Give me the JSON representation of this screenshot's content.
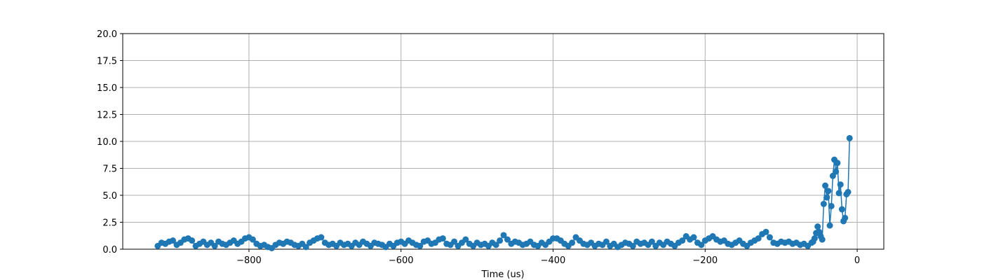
{
  "chart_data": {
    "type": "line",
    "xlabel": "Time (us)",
    "grid": true,
    "marker": "o",
    "xlim": [
      -966,
      35
    ],
    "ylim": [
      0,
      20
    ],
    "xticks": [
      {
        "value": -800,
        "label": "−800"
      },
      {
        "value": -600,
        "label": "−600"
      },
      {
        "value": -400,
        "label": "−400"
      },
      {
        "value": -200,
        "label": "−200"
      },
      0
    ],
    "yticks": [
      {
        "value": 0,
        "label": "0.0"
      },
      {
        "value": 2.5,
        "label": "2.5"
      },
      {
        "value": 5,
        "label": "5.0"
      },
      {
        "value": 7.5,
        "label": "7.5"
      },
      {
        "value": 10,
        "label": "10.0"
      },
      {
        "value": 12.5,
        "label": "12.5"
      },
      {
        "value": 15,
        "label": "15.0"
      },
      {
        "value": 17.5,
        "label": "17.5"
      },
      {
        "value": 20,
        "label": "20.0"
      }
    ],
    "x": [
      -920,
      -915,
      -910,
      -905,
      -900,
      -895,
      -890,
      -885,
      -880,
      -875,
      -870,
      -865,
      -860,
      -855,
      -850,
      -845,
      -840,
      -835,
      -830,
      -825,
      -820,
      -815,
      -810,
      -805,
      -800,
      -795,
      -790,
      -785,
      -780,
      -775,
      -770,
      -765,
      -760,
      -755,
      -750,
      -745,
      -740,
      -735,
      -730,
      -725,
      -720,
      -715,
      -710,
      -705,
      -700,
      -695,
      -690,
      -685,
      -680,
      -675,
      -670,
      -665,
      -660,
      -655,
      -650,
      -645,
      -640,
      -635,
      -630,
      -625,
      -620,
      -615,
      -610,
      -605,
      -600,
      -595,
      -590,
      -585,
      -580,
      -575,
      -570,
      -565,
      -560,
      -555,
      -550,
      -545,
      -540,
      -535,
      -530,
      -525,
      -520,
      -515,
      -510,
      -505,
      -500,
      -495,
      -490,
      -485,
      -480,
      -475,
      -470,
      -465,
      -460,
      -455,
      -450,
      -445,
      -440,
      -435,
      -430,
      -425,
      -420,
      -415,
      -410,
      -405,
      -400,
      -395,
      -390,
      -385,
      -380,
      -375,
      -370,
      -365,
      -360,
      -355,
      -350,
      -345,
      -340,
      -335,
      -330,
      -325,
      -320,
      -315,
      -310,
      -305,
      -300,
      -295,
      -290,
      -285,
      -280,
      -275,
      -270,
      -265,
      -260,
      -255,
      -250,
      -245,
      -240,
      -235,
      -230,
      -225,
      -220,
      -215,
      -210,
      -205,
      -200,
      -195,
      -190,
      -185,
      -180,
      -175,
      -170,
      -165,
      -160,
      -155,
      -150,
      -145,
      -140,
      -135,
      -130,
      -125,
      -120,
      -115,
      -110,
      -105,
      -100,
      -95,
      -90,
      -85,
      -80,
      -75,
      -70,
      -65,
      -60,
      -58,
      -56,
      -54,
      -52,
      -50,
      -48,
      -46,
      -44,
      -42,
      -40,
      -38,
      -36,
      -34,
      -32,
      -30,
      -28,
      -26,
      -24,
      -22,
      -20,
      -18,
      -16,
      -14,
      -12,
      -10
    ],
    "series": [
      {
        "color": "#1f77b4",
        "values": [
          0.3,
          0.6,
          0.5,
          0.7,
          0.8,
          0.4,
          0.6,
          0.9,
          1.0,
          0.8,
          0.3,
          0.5,
          0.7,
          0.4,
          0.6,
          0.3,
          0.7,
          0.5,
          0.4,
          0.6,
          0.8,
          0.5,
          0.7,
          1.0,
          1.1,
          0.9,
          0.5,
          0.3,
          0.4,
          0.2,
          0.1,
          0.4,
          0.6,
          0.5,
          0.7,
          0.6,
          0.4,
          0.3,
          0.5,
          0.2,
          0.6,
          0.8,
          1.0,
          1.1,
          0.6,
          0.4,
          0.5,
          0.3,
          0.6,
          0.4,
          0.5,
          0.3,
          0.6,
          0.4,
          0.7,
          0.5,
          0.3,
          0.6,
          0.5,
          0.4,
          0.2,
          0.5,
          0.3,
          0.6,
          0.7,
          0.5,
          0.8,
          0.6,
          0.4,
          0.3,
          0.7,
          0.8,
          0.5,
          0.6,
          0.9,
          1.0,
          0.5,
          0.4,
          0.7,
          0.3,
          0.6,
          0.9,
          0.5,
          0.3,
          0.6,
          0.4,
          0.5,
          0.3,
          0.6,
          0.4,
          0.8,
          1.3,
          0.9,
          0.5,
          0.7,
          0.6,
          0.4,
          0.5,
          0.7,
          0.4,
          0.3,
          0.6,
          0.4,
          0.7,
          1.0,
          1.0,
          0.8,
          0.5,
          0.3,
          0.6,
          1.1,
          0.8,
          0.5,
          0.4,
          0.6,
          0.3,
          0.5,
          0.4,
          0.7,
          0.3,
          0.5,
          0.2,
          0.4,
          0.6,
          0.5,
          0.3,
          0.7,
          0.5,
          0.6,
          0.4,
          0.7,
          0.3,
          0.6,
          0.4,
          0.7,
          0.5,
          0.3,
          0.6,
          0.8,
          1.2,
          0.9,
          1.1,
          0.6,
          0.4,
          0.8,
          1.0,
          1.2,
          0.9,
          0.7,
          0.8,
          0.5,
          0.4,
          0.6,
          0.8,
          0.5,
          0.3,
          0.6,
          0.8,
          1.0,
          1.4,
          1.6,
          1.1,
          0.6,
          0.5,
          0.7,
          0.6,
          0.7,
          0.5,
          0.6,
          0.4,
          0.5,
          0.3,
          0.6,
          0.7,
          1.0,
          1.5,
          2.1,
          1.6,
          1.2,
          0.9,
          4.2,
          5.9,
          4.8,
          5.4,
          2.2,
          4.0,
          6.8,
          8.3,
          7.2,
          8.0,
          5.2,
          6.0,
          3.7,
          2.6,
          2.9,
          5.1,
          5.3,
          10.3
        ]
      }
    ]
  }
}
